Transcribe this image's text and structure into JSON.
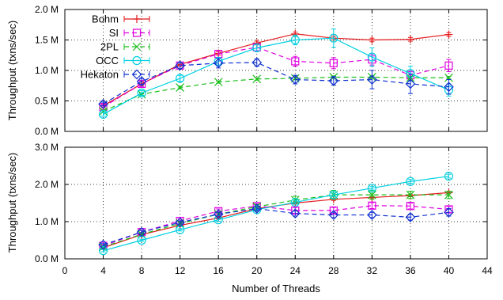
{
  "chart_data": [
    {
      "type": "line",
      "title": "",
      "xlabel": "",
      "ylabel": "Throughput (txns/sec)",
      "xlim": [
        0,
        44
      ],
      "ylim": [
        0,
        2.0
      ],
      "x_ticks": [
        0,
        4,
        8,
        12,
        16,
        20,
        24,
        28,
        32,
        36,
        40,
        44
      ],
      "x_tick_labels": [],
      "y_ticks": [
        0,
        0.5,
        1.0,
        1.5,
        2.0
      ],
      "y_tick_labels": [
        "0.0 M",
        "0.5 M",
        "1.0 M",
        "1.5 M",
        "2.0 M"
      ],
      "grid": true,
      "legend": "top-left",
      "x": [
        4,
        8,
        12,
        16,
        20,
        24,
        28,
        32,
        36,
        40
      ],
      "series": [
        {
          "name": "Bohm",
          "color": "#e41a1c",
          "marker": "plus",
          "dash": "solid",
          "values": [
            0.42,
            0.78,
            1.1,
            1.28,
            1.45,
            1.6,
            1.53,
            1.5,
            1.51,
            1.59
          ],
          "errors": [
            0.03,
            0.03,
            0.03,
            0.03,
            0.03,
            0.03,
            0.03,
            0.03,
            0.03,
            0.03
          ]
        },
        {
          "name": "SI",
          "color": "#e000e0",
          "marker": "square",
          "dash": "dashed",
          "values": [
            0.4,
            0.78,
            1.08,
            1.27,
            1.38,
            1.15,
            1.12,
            1.18,
            0.92,
            1.08
          ],
          "errors": [
            0.04,
            0.05,
            0.05,
            0.06,
            0.06,
            0.08,
            0.09,
            0.09,
            0.08,
            0.1
          ]
        },
        {
          "name": "2PL",
          "color": "#1abf1a",
          "marker": "x",
          "dash": "dashed",
          "values": [
            0.33,
            0.61,
            0.72,
            0.81,
            0.86,
            0.87,
            0.89,
            0.89,
            0.88,
            0.88
          ],
          "errors": [
            0.02,
            0.02,
            0.02,
            0.02,
            0.02,
            0.02,
            0.02,
            0.02,
            0.02,
            0.02
          ]
        },
        {
          "name": "OCC",
          "color": "#00d0e0",
          "marker": "circle",
          "dash": "solid",
          "values": [
            0.28,
            0.63,
            0.87,
            1.15,
            1.37,
            1.5,
            1.53,
            1.22,
            0.95,
            0.68
          ],
          "errors": [
            0.03,
            0.04,
            0.05,
            0.06,
            0.06,
            0.08,
            0.15,
            0.15,
            0.12,
            0.1
          ]
        },
        {
          "name": "Hekaton",
          "color": "#1030d0",
          "marker": "diamond",
          "dash": "dashed",
          "values": [
            0.45,
            0.82,
            1.08,
            1.12,
            1.13,
            0.85,
            0.83,
            0.85,
            0.78,
            0.73
          ],
          "errors": [
            0.03,
            0.05,
            0.05,
            0.08,
            0.06,
            0.07,
            0.07,
            0.15,
            0.16,
            0.12
          ]
        }
      ]
    },
    {
      "type": "line",
      "title": "",
      "xlabel": "Number of Threads",
      "ylabel": "Throughput (txns/sec)",
      "xlim": [
        0,
        44
      ],
      "ylim": [
        0,
        3.0
      ],
      "x_ticks": [
        0,
        4,
        8,
        12,
        16,
        20,
        24,
        28,
        32,
        36,
        40,
        44
      ],
      "x_tick_labels": [
        "0",
        "4",
        "8",
        "12",
        "16",
        "20",
        "24",
        "28",
        "32",
        "36",
        "40",
        "44"
      ],
      "y_ticks": [
        0,
        1.0,
        2.0,
        3.0
      ],
      "y_tick_labels": [
        "0.0 M",
        "1.0 M",
        "2.0 M",
        "3.0 M"
      ],
      "grid": true,
      "legend": "none",
      "x": [
        4,
        8,
        12,
        16,
        20,
        24,
        28,
        32,
        36,
        40
      ],
      "series": [
        {
          "color": "#e41a1c",
          "marker": "plus",
          "dash": "solid",
          "values": [
            0.3,
            0.65,
            0.9,
            1.1,
            1.35,
            1.5,
            1.6,
            1.65,
            1.7,
            1.78
          ],
          "errors": [
            0.03,
            0.03,
            0.03,
            0.03,
            0.03,
            0.03,
            0.03,
            0.03,
            0.03,
            0.03
          ]
        },
        {
          "color": "#e000e0",
          "marker": "square",
          "dash": "dashed",
          "values": [
            0.35,
            0.72,
            1.02,
            1.28,
            1.42,
            1.3,
            1.3,
            1.43,
            1.42,
            1.33
          ],
          "errors": [
            0.04,
            0.05,
            0.05,
            0.06,
            0.06,
            0.08,
            0.08,
            0.08,
            0.08,
            0.08
          ]
        },
        {
          "color": "#1abf1a",
          "marker": "x",
          "dash": "dashed",
          "values": [
            0.32,
            0.66,
            0.95,
            1.2,
            1.4,
            1.58,
            1.72,
            1.72,
            1.72,
            1.72
          ],
          "errors": [
            0.03,
            0.04,
            0.05,
            0.05,
            0.06,
            0.1,
            0.12,
            0.12,
            0.1,
            0.1
          ]
        },
        {
          "color": "#00d0e0",
          "marker": "circle",
          "dash": "solid",
          "values": [
            0.22,
            0.5,
            0.78,
            1.05,
            1.32,
            1.52,
            1.72,
            1.9,
            2.08,
            2.22
          ],
          "errors": [
            0.03,
            0.03,
            0.03,
            0.04,
            0.04,
            0.05,
            0.05,
            0.05,
            0.05,
            0.05
          ]
        },
        {
          "color": "#1030d0",
          "marker": "diamond",
          "dash": "dashed",
          "values": [
            0.38,
            0.72,
            0.98,
            1.2,
            1.35,
            1.22,
            1.18,
            1.18,
            1.12,
            1.25
          ],
          "errors": [
            0.03,
            0.04,
            0.04,
            0.05,
            0.05,
            0.07,
            0.07,
            0.07,
            0.08,
            0.1
          ]
        }
      ]
    }
  ]
}
